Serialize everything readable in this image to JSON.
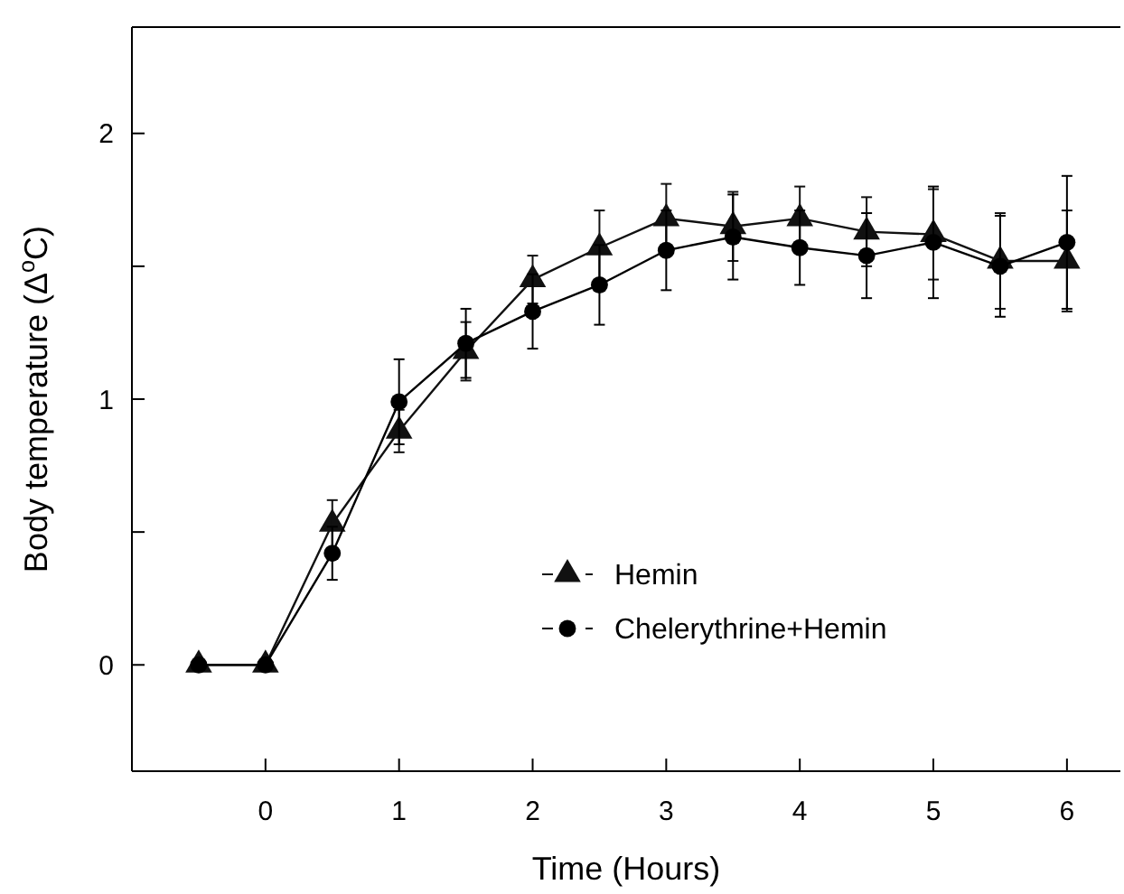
{
  "chart_data": {
    "type": "line",
    "xlabel": "Time (Hours)",
    "ylabel": "Body temperature (Δ$^{o}$C)",
    "x": [
      -0.5,
      0,
      0.5,
      1,
      1.5,
      2,
      2.5,
      3,
      3.5,
      4,
      4.5,
      5,
      5.5,
      6
    ],
    "xlim": [
      -1,
      6.4
    ],
    "xticks": [
      0,
      1,
      2,
      3,
      4,
      5,
      6
    ],
    "ylim": [
      -0.4,
      2.4
    ],
    "yticks": [
      0,
      {
        "value": 0.5,
        "label": null
      },
      1,
      {
        "value": 1.5,
        "label": null
      },
      2
    ],
    "grid": false,
    "legend": "bottom right",
    "line_style": "solid",
    "series": [
      {
        "name": "Hemin",
        "color": "#111111",
        "marker": "triangle",
        "values": [
          0,
          0,
          0.53,
          0.88,
          1.18,
          1.45,
          1.57,
          1.68,
          1.65,
          1.68,
          1.63,
          1.62,
          1.52,
          1.52
        ],
        "errors": [
          null,
          null,
          0.09,
          0.08,
          0.11,
          0.09,
          0.14,
          0.13,
          0.13,
          0.12,
          0.13,
          0.17,
          0.18,
          0.19
        ]
      },
      {
        "name": "Chelerythrine+Hemin",
        "color": "#000000",
        "marker": "circle",
        "values": [
          0,
          0,
          0.42,
          0.99,
          1.21,
          1.33,
          1.43,
          1.56,
          1.61,
          1.57,
          1.54,
          1.59,
          1.5,
          1.59
        ],
        "errors": [
          null,
          null,
          0.1,
          0.16,
          0.13,
          0.14,
          0.15,
          0.15,
          0.16,
          0.14,
          0.16,
          0.21,
          0.19,
          0.25
        ]
      }
    ]
  }
}
